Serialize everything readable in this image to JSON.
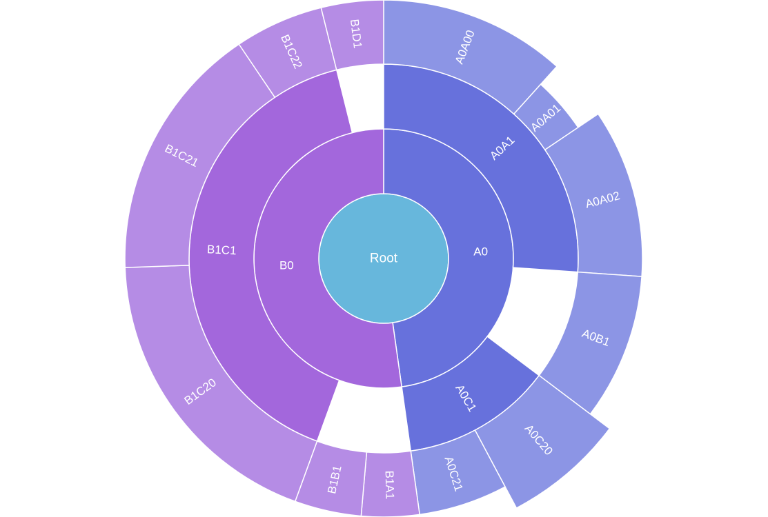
{
  "chart_data": {
    "type": "sunburst",
    "colors": {
      "root": "#67b7dc",
      "A_inner": "#6771dc",
      "A_outer": "#8c95e5",
      "B_inner": "#a367dc",
      "B_outer": "#b58ce5"
    },
    "root": {
      "name": "Root",
      "children": [
        {
          "name": "A0",
          "children": [
            {
              "name": "A0A1",
              "children": [
                {
                  "name": "A0A00"
                },
                {
                  "name": "A0A01"
                },
                {
                  "name": "A0A02"
                }
              ]
            },
            {
              "name": "A0B1"
            },
            {
              "name": "A0C1",
              "children": [
                {
                  "name": "A0C20"
                },
                {
                  "name": "A0C21"
                }
              ]
            }
          ]
        },
        {
          "name": "B0",
          "children": [
            {
              "name": "B1A1"
            },
            {
              "name": "B1B1"
            },
            {
              "name": "B1C1",
              "children": [
                {
                  "name": "B1C20"
                },
                {
                  "name": "B1C21"
                },
                {
                  "name": "B1C22"
                }
              ]
            },
            {
              "name": "B1D1"
            }
          ]
        }
      ]
    }
  }
}
